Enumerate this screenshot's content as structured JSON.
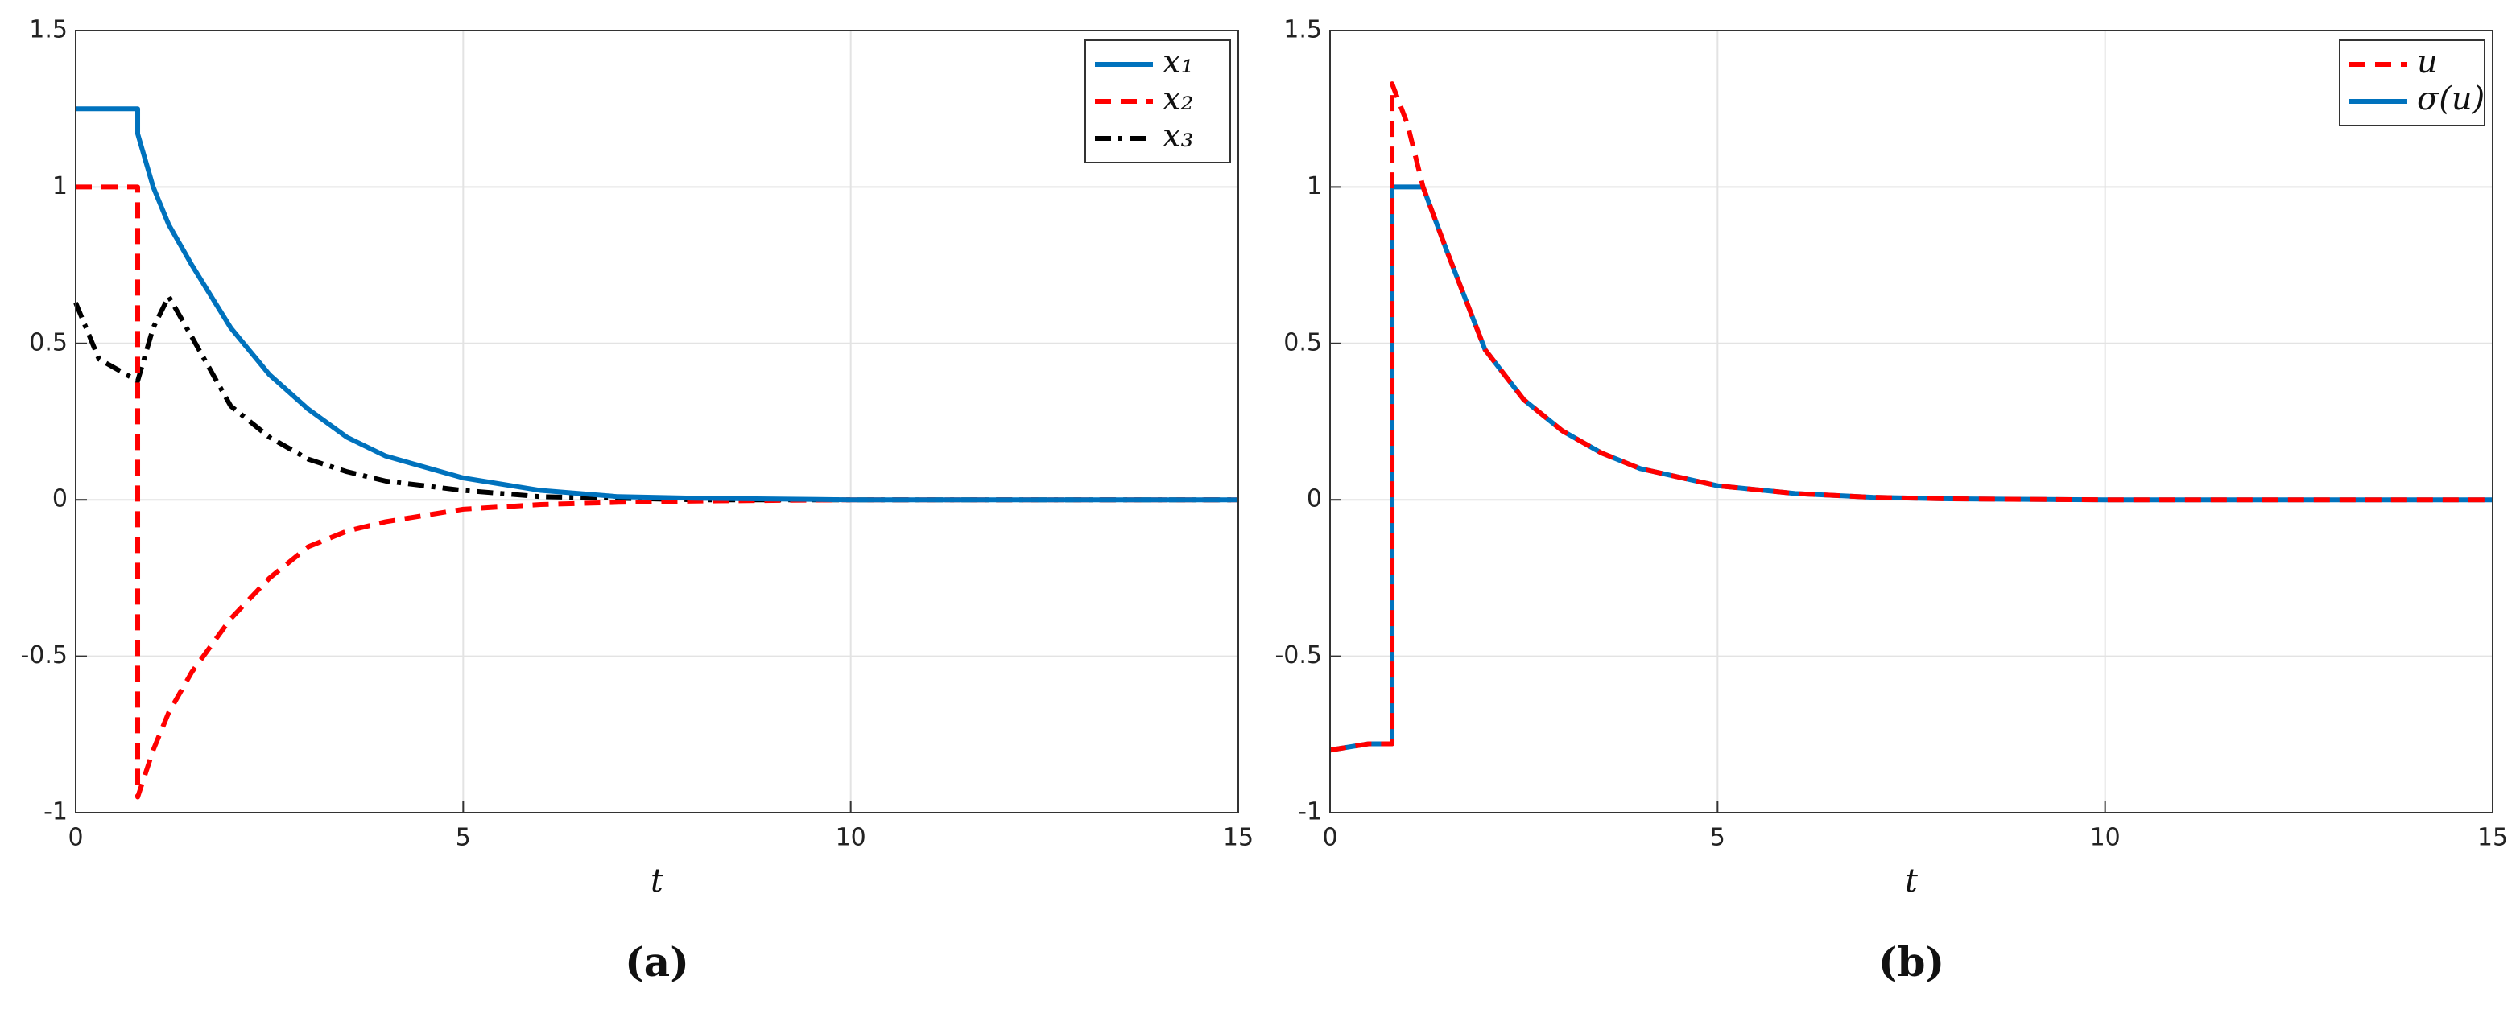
{
  "chart_data": [
    {
      "type": "line",
      "caption": "(a)",
      "xlabel": "t",
      "x": [
        0,
        0.3,
        0.8,
        0.8,
        1,
        1.2,
        1.5,
        2,
        2.5,
        3,
        3.5,
        4,
        5,
        6,
        7,
        8,
        10,
        12,
        15
      ],
      "series": [
        {
          "name": "x₁",
          "color": "#0072bd",
          "linestyle": "solid",
          "values": [
            1.25,
            1.25,
            1.25,
            1.17,
            1.0,
            0.88,
            0.75,
            0.55,
            0.4,
            0.29,
            0.2,
            0.14,
            0.07,
            0.03,
            0.01,
            0.005,
            0,
            0,
            0
          ]
        },
        {
          "name": "x₂",
          "color": "#ff0000",
          "linestyle": "dashed",
          "values": [
            1,
            1,
            1,
            -0.95,
            -0.8,
            -0.68,
            -0.55,
            -0.38,
            -0.25,
            -0.15,
            -0.1,
            -0.07,
            -0.03,
            -0.015,
            -0.008,
            -0.004,
            0,
            0,
            0
          ]
        },
        {
          "name": "x₃",
          "color": "#000000",
          "linestyle": "dashdot",
          "values": [
            0.63,
            0.45,
            0.38,
            0.38,
            0.55,
            0.65,
            0.52,
            0.3,
            0.2,
            0.13,
            0.09,
            0.06,
            0.03,
            0.01,
            0.005,
            0,
            0,
            0,
            0
          ]
        }
      ],
      "xlim": [
        0,
        15
      ],
      "xticks": [
        0,
        5,
        10,
        15
      ],
      "ylim": [
        -1,
        1.5
      ],
      "yticks": [
        -1,
        -0.5,
        0,
        0.5,
        1,
        1.5
      ],
      "grid": true,
      "legend": "upper right"
    },
    {
      "type": "line",
      "caption": "(b)",
      "xlabel": "t",
      "x": [
        0,
        0.5,
        0.8,
        0.8,
        1,
        1.2,
        1.5,
        2,
        2.5,
        3,
        3.5,
        4,
        5,
        6,
        7,
        8,
        10,
        15
      ],
      "series": [
        {
          "name": "u",
          "color": "#ff0000",
          "linestyle": "dashed",
          "values": [
            -0.8,
            -0.78,
            -0.78,
            1.33,
            1.2,
            1.0,
            0.8,
            0.48,
            0.32,
            0.22,
            0.15,
            0.1,
            0.045,
            0.02,
            0.008,
            0.003,
            0,
            0
          ]
        },
        {
          "name": "σ(u)",
          "color": "#0072bd",
          "linestyle": "solid",
          "values": [
            -0.8,
            -0.78,
            -0.78,
            1,
            1,
            1,
            0.8,
            0.48,
            0.32,
            0.22,
            0.15,
            0.1,
            0.045,
            0.02,
            0.008,
            0.003,
            0,
            0
          ]
        }
      ],
      "xlim": [
        0,
        15
      ],
      "xticks": [
        0,
        5,
        10,
        15
      ],
      "ylim": [
        -1,
        1.5
      ],
      "yticks": [
        -1,
        -0.5,
        0,
        0.5,
        1,
        1.5
      ],
      "grid": true,
      "legend": "upper right"
    }
  ]
}
